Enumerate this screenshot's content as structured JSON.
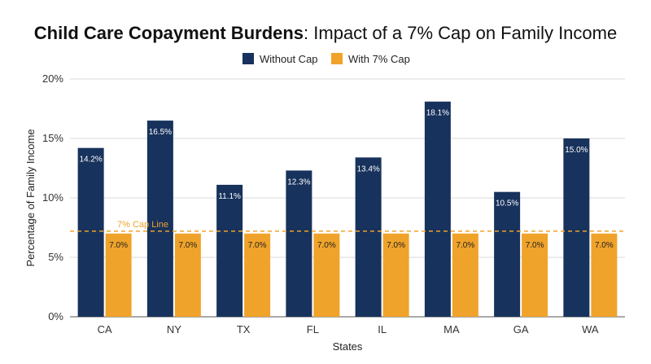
{
  "chart_data": {
    "type": "bar",
    "title_bold": "Child Care Copayment Burdens",
    "title_rest": ": Impact of a 7% Cap on Family Income",
    "xlabel": "States",
    "ylabel": "Percentage of Family Income",
    "categories": [
      "CA",
      "NY",
      "TX",
      "FL",
      "IL",
      "MA",
      "GA",
      "WA"
    ],
    "series": [
      {
        "name": "Without Cap",
        "color": "#17325c",
        "values": [
          14.2,
          16.5,
          11.1,
          12.3,
          13.4,
          18.1,
          10.5,
          15.0
        ],
        "labels": [
          "14.2%",
          "16.5%",
          "11.1%",
          "12.3%",
          "13.4%",
          "18.1%",
          "10.5%",
          "15.0%"
        ]
      },
      {
        "name": "With 7% Cap",
        "color": "#f0a32a",
        "values": [
          7.0,
          7.0,
          7.0,
          7.0,
          7.0,
          7.0,
          7.0,
          7.0
        ],
        "labels": [
          "7.0%",
          "7.0%",
          "7.0%",
          "7.0%",
          "7.0%",
          "7.0%",
          "7.0%",
          "7.0%"
        ]
      }
    ],
    "ylim": [
      0,
      20
    ],
    "yticks": [
      0,
      5,
      10,
      15,
      20
    ],
    "ytick_labels": [
      "0%",
      "5%",
      "10%",
      "15%",
      "20%"
    ],
    "reference_line": {
      "value": 7.2,
      "label": "7% Cap Line",
      "color": "#f0a32a",
      "style": "dashed"
    },
    "grid": true,
    "legend_position": "top-center"
  }
}
